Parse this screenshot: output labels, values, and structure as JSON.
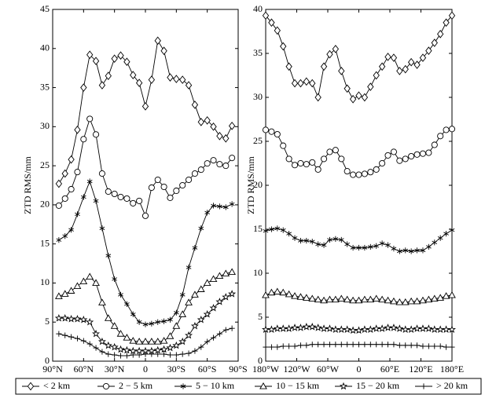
{
  "chart_data": [
    {
      "type": "line",
      "ylabel": "ZTD RMS/mm",
      "x": [
        84,
        78,
        72,
        66,
        60,
        54,
        48,
        42,
        36,
        30,
        24,
        18,
        12,
        6,
        0,
        -6,
        -12,
        -18,
        -24,
        -30,
        -36,
        -42,
        -48,
        -54,
        -60,
        -66,
        -72,
        -78,
        -84
      ],
      "xlim": [
        90,
        -90
      ],
      "xticks": [
        {
          "value": 90,
          "label": "90°N"
        },
        {
          "value": 60,
          "label": "60°N"
        },
        {
          "value": 30,
          "label": "30°N"
        },
        0,
        {
          "value": -30,
          "label": "30°S"
        },
        {
          "value": -60,
          "label": "60°S"
        },
        {
          "value": -90,
          "label": "90°S"
        }
      ],
      "ylim": [
        0,
        45
      ],
      "yticks": [
        0,
        5,
        10,
        15,
        20,
        25,
        30,
        35,
        40,
        45
      ],
      "series": [
        {
          "name": "< 2 km",
          "marker": "diamond",
          "color": "#000000",
          "values": [
            22.7,
            24,
            25.8,
            29.6,
            35,
            39.2,
            38.4,
            35.3,
            36.5,
            38.7,
            39.1,
            38.3,
            36.6,
            35.6,
            32.6,
            36,
            41,
            39.7,
            36.3,
            36.1,
            36,
            35.3,
            32.8,
            30.6,
            30.8,
            30,
            28.8,
            28.5,
            30.1
          ]
        },
        {
          "name": "2 − 5 km",
          "marker": "circle",
          "color": "#000000",
          "values": [
            19.9,
            20.8,
            22,
            24.2,
            28.4,
            31,
            29,
            24,
            21.7,
            21.4,
            21,
            20.8,
            20.2,
            20.5,
            18.6,
            22.2,
            23.2,
            22.3,
            20.9,
            21.8,
            22.5,
            23.2,
            24,
            24.5,
            25.3,
            25.7,
            25.2,
            25,
            26
          ]
        },
        {
          "name": "5 − 10 km",
          "marker": "asterisk",
          "color": "#000000",
          "values": [
            15.5,
            16,
            16.8,
            18.8,
            21,
            23,
            20.5,
            17,
            13.5,
            10.5,
            8.5,
            7.3,
            6,
            5,
            4.7,
            4.8,
            5,
            5.1,
            5.3,
            6.2,
            8.5,
            12,
            14.5,
            17,
            19,
            19.9,
            19.8,
            19.7,
            20.1
          ]
        },
        {
          "name": "10 − 15 km",
          "marker": "triangle",
          "color": "#000000",
          "values": [
            8.3,
            8.6,
            9,
            9.6,
            10.2,
            10.8,
            10,
            7.5,
            5.5,
            4.5,
            3.5,
            3,
            2.6,
            2.5,
            2.5,
            2.5,
            2.5,
            2.6,
            3.2,
            4.5,
            6,
            7.5,
            8.5,
            9.2,
            10,
            10.5,
            10.9,
            11.2,
            11.4
          ]
        },
        {
          "name": "15 − 20 km",
          "marker": "star",
          "color": "#000000",
          "values": [
            5.5,
            5.5,
            5.4,
            5.4,
            5.3,
            5,
            3.5,
            2.5,
            2,
            1.8,
            1.5,
            1.4,
            1.3,
            1.3,
            1.3,
            1.3,
            1.4,
            1.5,
            1.7,
            2,
            2.5,
            3.3,
            4.5,
            5.3,
            6,
            6.8,
            7.6,
            8.2,
            8.6
          ]
        },
        {
          "name": "> 20 km",
          "marker": "plus",
          "color": "#000000",
          "values": [
            3.5,
            3.3,
            3.1,
            2.9,
            2.6,
            2.2,
            1.7,
            1.2,
            0.9,
            0.8,
            0.7,
            0.7,
            0.8,
            0.8,
            0.9,
            0.9,
            0.9,
            0.9,
            0.8,
            0.8,
            0.9,
            1,
            1.3,
            1.8,
            2.5,
            3,
            3.5,
            4,
            4.2
          ]
        }
      ]
    },
    {
      "type": "line",
      "ylabel": "ZTD RMS/mm",
      "x": [
        -180,
        -168.75,
        -157.5,
        -146.25,
        -135,
        -123.75,
        -112.5,
        -101.25,
        -90,
        -78.75,
        -67.5,
        -56.25,
        -45,
        -33.75,
        -22.5,
        -11.25,
        0,
        11.25,
        22.5,
        33.75,
        45,
        56.25,
        67.5,
        78.75,
        90,
        101.25,
        112.5,
        123.75,
        135,
        146.25,
        157.5,
        168.75,
        180
      ],
      "xlim": [
        -180,
        180
      ],
      "xticks": [
        {
          "value": -180,
          "label": "180°W"
        },
        {
          "value": -120,
          "label": "120°W"
        },
        {
          "value": -60,
          "label": "60°W"
        },
        0,
        {
          "value": 60,
          "label": "60°E"
        },
        {
          "value": 120,
          "label": "120°E"
        },
        {
          "value": 180,
          "label": "180°E"
        }
      ],
      "ylim": [
        0,
        40
      ],
      "yticks": [
        0,
        5,
        10,
        15,
        20,
        25,
        30,
        35,
        40
      ],
      "series": [
        {
          "marker": "diamond",
          "color": "#000000",
          "values": [
            39.3,
            38.5,
            37.6,
            35.8,
            33.5,
            31.6,
            31.6,
            31.8,
            31.6,
            30,
            33.5,
            34.9,
            35.5,
            33,
            31,
            29.8,
            30.2,
            30,
            31.2,
            32.5,
            33.5,
            34.6,
            34.5,
            33,
            33.2,
            34,
            33.7,
            34.5,
            35.3,
            36.2,
            37.2,
            38.5,
            39.3
          ]
        },
        {
          "marker": "circle",
          "color": "#000000",
          "values": [
            26.3,
            26.1,
            25.8,
            24.5,
            23,
            22.3,
            22.5,
            22.4,
            22.6,
            21.8,
            23,
            23.8,
            24,
            23,
            21.6,
            21.2,
            21.2,
            21.3,
            21.5,
            21.8,
            22.5,
            23.4,
            23.8,
            22.8,
            23,
            23.3,
            23.5,
            23.6,
            23.7,
            24.6,
            25.6,
            26.3,
            26.4
          ]
        },
        {
          "marker": "asterisk",
          "color": "#000000",
          "values": [
            14.8,
            15,
            15.1,
            14.9,
            14.5,
            14,
            13.7,
            13.7,
            13.6,
            13.3,
            13.2,
            13.8,
            13.9,
            13.8,
            13.3,
            12.9,
            12.9,
            12.9,
            13,
            13.1,
            13.4,
            13.2,
            12.8,
            12.5,
            12.6,
            12.5,
            12.6,
            12.6,
            13,
            13.5,
            14,
            14.5,
            14.9
          ]
        },
        {
          "marker": "triangle",
          "color": "#000000",
          "values": [
            7.5,
            7.8,
            7.9,
            7.8,
            7.6,
            7.4,
            7.3,
            7.2,
            7.1,
            7,
            6.9,
            7,
            7,
            7.1,
            7,
            6.9,
            6.9,
            7,
            7,
            7.1,
            7,
            6.9,
            6.8,
            6.7,
            6.7,
            6.8,
            6.8,
            6.9,
            7,
            7.1,
            7.2,
            7.4,
            7.5
          ]
        },
        {
          "marker": "star",
          "color": "#000000",
          "values": [
            3.6,
            3.6,
            3.7,
            3.7,
            3.7,
            3.8,
            3.8,
            3.9,
            3.9,
            3.8,
            3.7,
            3.7,
            3.6,
            3.6,
            3.6,
            3.5,
            3.5,
            3.6,
            3.6,
            3.7,
            3.7,
            3.8,
            3.8,
            3.7,
            3.6,
            3.6,
            3.7,
            3.7,
            3.7,
            3.6,
            3.6,
            3.6,
            3.6
          ]
        },
        {
          "marker": "plus",
          "color": "#000000",
          "values": [
            1.6,
            1.6,
            1.6,
            1.7,
            1.7,
            1.7,
            1.8,
            1.8,
            1.9,
            1.9,
            1.9,
            1.9,
            1.9,
            1.9,
            1.9,
            1.9,
            1.9,
            1.9,
            1.9,
            1.9,
            1.9,
            1.9,
            1.9,
            1.8,
            1.8,
            1.8,
            1.8,
            1.7,
            1.7,
            1.7,
            1.7,
            1.6,
            1.6
          ]
        }
      ]
    }
  ]
}
